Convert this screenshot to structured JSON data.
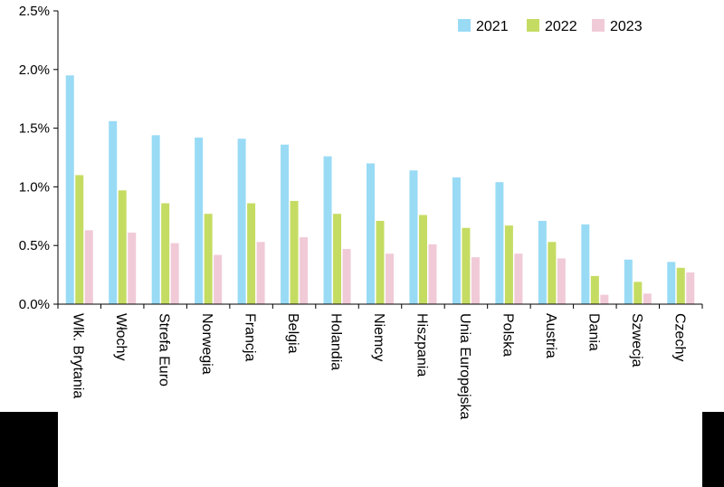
{
  "colors": {
    "series": [
      "#99DBF5",
      "#C5DC63",
      "#F1CAD7"
    ],
    "axis": "#000000"
  },
  "chart_data": {
    "type": "bar",
    "title": "",
    "xlabel": "",
    "ylabel": "",
    "ylim": [
      0,
      0.025
    ],
    "yticks": [
      "0.0%",
      "0.5%",
      "1.0%",
      "1.5%",
      "2.0%",
      "2.5%"
    ],
    "grid": false,
    "legend_position": "top-right",
    "categories": [
      "Wlk. Brytania",
      "Włochy",
      "Strefa Euro",
      "Norwegia",
      "Francja",
      "Belgia",
      "Holandia",
      "Niemcy",
      "Hiszpania",
      "Unia Europejska",
      "Polska",
      "Austria",
      "Dania",
      "Szwecja",
      "Czechy"
    ],
    "series": [
      {
        "name": "2021",
        "values": [
          0.0195,
          0.0156,
          0.0144,
          0.0142,
          0.0141,
          0.0136,
          0.0126,
          0.012,
          0.0114,
          0.0108,
          0.0104,
          0.0071,
          0.0068,
          0.0038,
          0.0036
        ]
      },
      {
        "name": "2022",
        "values": [
          0.011,
          0.0097,
          0.0086,
          0.0077,
          0.0086,
          0.0088,
          0.0077,
          0.0071,
          0.0076,
          0.0065,
          0.0067,
          0.0053,
          0.0024,
          0.0019,
          0.0031
        ]
      },
      {
        "name": "2023",
        "values": [
          0.0063,
          0.0061,
          0.0052,
          0.0042,
          0.0053,
          0.0057,
          0.0047,
          0.0043,
          0.0051,
          0.004,
          0.0043,
          0.0039,
          0.0008,
          0.0009,
          0.0027
        ]
      }
    ]
  }
}
